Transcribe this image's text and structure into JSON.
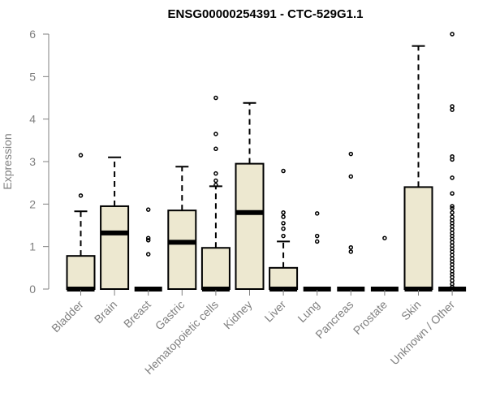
{
  "chart_data": {
    "type": "boxplot",
    "title": "ENSG00000254391 - CTC-529G1.1",
    "xlabel": "",
    "ylabel": "Expression",
    "ylim": [
      0,
      6
    ],
    "yticks": [
      "0",
      "1",
      "2",
      "3",
      "4",
      "5",
      "6"
    ],
    "box_color": "#EDE8D0",
    "categories": [
      {
        "label": "Bladder",
        "q1": 0,
        "median": 0,
        "q3": 0.78,
        "whisker_low": 0,
        "whisker_high": 1.83,
        "outliers": [
          2.2,
          3.15
        ]
      },
      {
        "label": "Brain",
        "q1": 0,
        "median": 1.32,
        "q3": 1.95,
        "whisker_low": 0,
        "whisker_high": 3.1,
        "outliers": []
      },
      {
        "label": "Breast",
        "q1": 0,
        "median": 0,
        "q3": 0,
        "whisker_low": 0,
        "whisker_high": 0,
        "outliers": [
          0.82,
          1.15,
          1.2,
          1.87
        ]
      },
      {
        "label": "Gastric",
        "q1": 0,
        "median": 1.1,
        "q3": 1.85,
        "whisker_low": 0,
        "whisker_high": 2.88,
        "outliers": []
      },
      {
        "label": "Hematopoietic cells",
        "q1": 0,
        "median": 0,
        "q3": 0.97,
        "whisker_low": 0,
        "whisker_high": 2.42,
        "outliers": [
          2.45,
          2.55,
          2.72,
          3.3,
          3.65,
          4.5
        ]
      },
      {
        "label": "Kidney",
        "q1": 0,
        "median": 1.8,
        "q3": 2.95,
        "whisker_low": 0,
        "whisker_high": 4.38,
        "outliers": []
      },
      {
        "label": "Liver",
        "q1": 0,
        "median": 0,
        "q3": 0.5,
        "whisker_low": 0,
        "whisker_high": 1.12,
        "outliers": [
          1.25,
          1.42,
          1.55,
          1.7,
          1.8,
          2.78
        ]
      },
      {
        "label": "Lung",
        "q1": 0,
        "median": 0,
        "q3": 0,
        "whisker_low": 0,
        "whisker_high": 0,
        "outliers": [
          1.12,
          1.25,
          1.78
        ]
      },
      {
        "label": "Pancreas",
        "q1": 0,
        "median": 0,
        "q3": 0,
        "whisker_low": 0,
        "whisker_high": 0,
        "outliers": [
          0.88,
          0.98,
          2.65,
          3.18
        ]
      },
      {
        "label": "Prostate",
        "q1": 0,
        "median": 0,
        "q3": 0,
        "whisker_low": 0,
        "whisker_high": 0,
        "outliers": [
          1.2
        ]
      },
      {
        "label": "Skin",
        "q1": 0,
        "median": 0,
        "q3": 2.4,
        "whisker_low": 0,
        "whisker_high": 5.72,
        "outliers": []
      },
      {
        "label": "Unknown / Other",
        "q1": 0,
        "median": 0,
        "q3": 0,
        "whisker_low": 0,
        "whisker_high": 0,
        "outliers": [
          0.05,
          0.12,
          0.2,
          0.28,
          0.35,
          0.42,
          0.5,
          0.58,
          0.65,
          0.72,
          0.8,
          0.88,
          0.95,
          1.02,
          1.1,
          1.18,
          1.25,
          1.32,
          1.4,
          1.48,
          1.55,
          1.62,
          1.7,
          1.8,
          1.9,
          1.95,
          2.25,
          2.62,
          3.05,
          3.12,
          4.22,
          4.3,
          6.0
        ]
      }
    ]
  }
}
